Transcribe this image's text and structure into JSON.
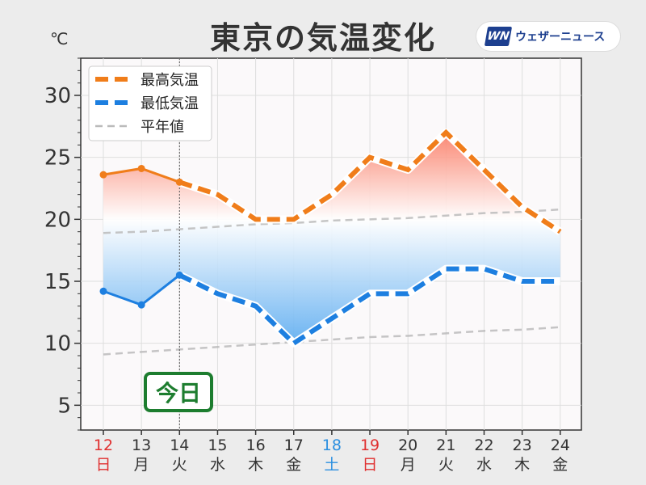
{
  "title": "東京の気温変化",
  "unit": "℃",
  "logo": {
    "mark": "WN",
    "text": "ウェザーニュース"
  },
  "today_label": "今日",
  "colors": {
    "high": "#f07d1a",
    "low": "#1d7fe0",
    "normal": "#bbbbbb",
    "sunday": "#e03030",
    "saturday": "#2b8fe0",
    "weekday": "#333333",
    "today_badge": "#1d7d2f"
  },
  "chart_data": {
    "type": "line",
    "title": "東京の気温変化",
    "ylabel": "℃",
    "ylim": [
      3,
      33
    ],
    "yticks": [
      5,
      10,
      15,
      20,
      25,
      30
    ],
    "grid": true,
    "legend_position": "top-left",
    "categories": [
      {
        "day": "12",
        "weekday": "日",
        "type": "sunday"
      },
      {
        "day": "13",
        "weekday": "月",
        "type": "weekday"
      },
      {
        "day": "14",
        "weekday": "火",
        "type": "weekday"
      },
      {
        "day": "15",
        "weekday": "水",
        "type": "weekday"
      },
      {
        "day": "16",
        "weekday": "木",
        "type": "weekday"
      },
      {
        "day": "17",
        "weekday": "金",
        "type": "weekday"
      },
      {
        "day": "18",
        "weekday": "土",
        "type": "saturday"
      },
      {
        "day": "19",
        "weekday": "日",
        "type": "sunday"
      },
      {
        "day": "20",
        "weekday": "月",
        "type": "weekday"
      },
      {
        "day": "21",
        "weekday": "火",
        "type": "weekday"
      },
      {
        "day": "22",
        "weekday": "水",
        "type": "weekday"
      },
      {
        "day": "23",
        "weekday": "木",
        "type": "weekday"
      },
      {
        "day": "24",
        "weekday": "金",
        "type": "weekday"
      }
    ],
    "today_index": 2,
    "series": [
      {
        "name": "最高気温",
        "key": "high",
        "values": [
          23.6,
          24.1,
          23.0,
          22.0,
          20.0,
          20.0,
          22.0,
          25.0,
          24.0,
          27.0,
          24.0,
          21.0,
          19.0
        ]
      },
      {
        "name": "最低気温",
        "key": "low",
        "values": [
          14.2,
          13.1,
          15.5,
          14.0,
          13.0,
          10.0,
          12.0,
          14.0,
          14.0,
          16.0,
          16.0,
          15.0,
          15.0
        ]
      },
      {
        "name": "平年値",
        "key": "normal_high",
        "values": [
          18.9,
          19.0,
          19.2,
          19.4,
          19.6,
          19.7,
          19.9,
          20.0,
          20.1,
          20.3,
          20.5,
          20.6,
          20.8
        ]
      },
      {
        "name": "",
        "key": "normal_low",
        "values": [
          9.1,
          9.3,
          9.5,
          9.7,
          9.9,
          10.1,
          10.3,
          10.5,
          10.6,
          10.8,
          11.0,
          11.1,
          11.3
        ]
      }
    ]
  }
}
